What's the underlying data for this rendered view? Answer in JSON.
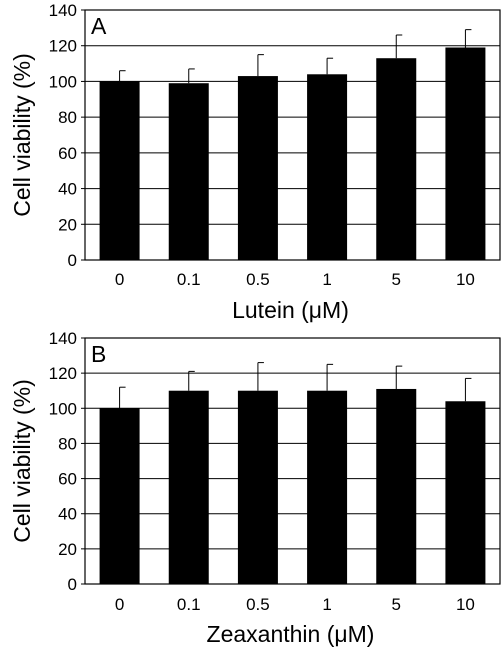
{
  "chart_data": [
    {
      "type": "bar",
      "panel_label": "A",
      "categories": [
        "0",
        "0.1",
        "0.5",
        "1",
        "5",
        "10"
      ],
      "values": [
        100,
        99,
        103,
        104,
        113,
        119
      ],
      "errors": [
        6,
        8,
        12,
        9,
        13,
        10
      ],
      "xlabel": "Lutein (μM)",
      "ylabel": "Cell viability (%)",
      "ylim": [
        0,
        140
      ],
      "yticks": [
        0,
        20,
        40,
        60,
        80,
        100,
        120,
        140
      ],
      "grid": true,
      "bar_color": "#000000"
    },
    {
      "type": "bar",
      "panel_label": "B",
      "categories": [
        "0",
        "0.1",
        "0.5",
        "1",
        "5",
        "10"
      ],
      "values": [
        100,
        110,
        110,
        110,
        111,
        104
      ],
      "errors": [
        12,
        11,
        16,
        15,
        13,
        13
      ],
      "xlabel": "Zeaxanthin (μM)",
      "ylabel": "Cell viability (%)",
      "ylim": [
        0,
        140
      ],
      "yticks": [
        0,
        20,
        40,
        60,
        80,
        100,
        120,
        140
      ],
      "grid": true,
      "bar_color": "#000000"
    }
  ]
}
